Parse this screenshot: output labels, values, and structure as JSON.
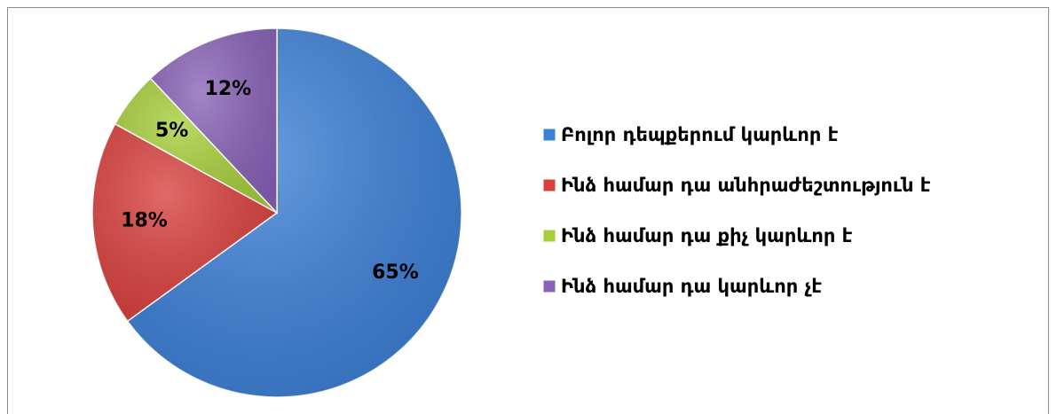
{
  "chart_data": {
    "type": "pie",
    "categories": [
      "Բոլոր դեպքերում կարևոր է",
      "Ինձ համար դա անհրաժեշտություն է",
      "Ինձ համար դա քիչ կարևոր է",
      "Ինձ համար դա կարևոր չէ"
    ],
    "values": [
      65,
      18,
      5,
      12
    ],
    "value_labels": [
      "65%",
      "18%",
      "5%",
      "12%"
    ],
    "colors": [
      "#3c7fd6",
      "#d9403d",
      "#a8cf3b",
      "#8a62b8"
    ],
    "legend": "right"
  }
}
